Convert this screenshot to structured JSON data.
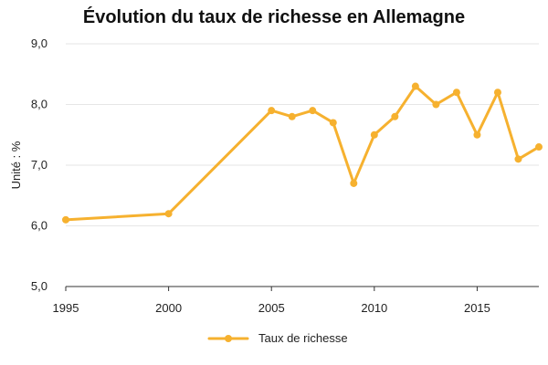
{
  "chart_data": {
    "type": "line",
    "title": "Évolution du taux de richesse en Allemagne",
    "ylabel": "Unité : %",
    "xlabel": "",
    "x": [
      1995,
      2000,
      2005,
      2006,
      2007,
      2008,
      2009,
      2010,
      2011,
      2012,
      2013,
      2014,
      2015,
      2016,
      2017,
      2018
    ],
    "series": [
      {
        "name": "Taux de richesse",
        "values": [
          6.1,
          6.2,
          7.9,
          7.8,
          7.9,
          7.7,
          6.7,
          7.5,
          7.8,
          8.3,
          8.0,
          8.2,
          7.5,
          8.2,
          7.1,
          7.3
        ]
      }
    ],
    "xlim": [
      1995,
      2018
    ],
    "ylim": [
      5.0,
      9.0
    ],
    "xticks": [
      1995,
      2000,
      2005,
      2010,
      2015
    ],
    "xtick_labels": [
      "1995",
      "2000",
      "2005",
      "2010",
      "2015"
    ],
    "yticks": [
      5.0,
      6.0,
      7.0,
      8.0,
      9.0
    ],
    "ytick_labels": [
      "5,0",
      "6,0",
      "7,0",
      "8,0",
      "9,0"
    ],
    "grid": true,
    "legend": "bottom-center",
    "colors": {
      "series": "#F6B12F",
      "grid": "#E6E6E6",
      "axis": "#333333"
    }
  }
}
